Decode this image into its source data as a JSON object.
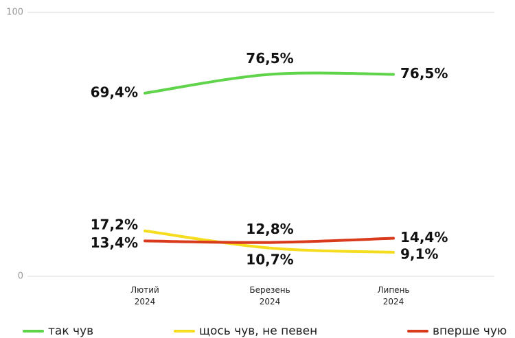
{
  "chart_data": {
    "type": "line",
    "categories": [
      "Лютий 2024",
      "Березень 2024",
      "Липень 2024"
    ],
    "series": [
      {
        "name": "так чув",
        "color": "#5fd34a",
        "values": [
          69.4,
          76.5,
          76.5
        ],
        "value_labels": [
          "69,4%",
          "76,5%",
          "76,5%"
        ]
      },
      {
        "name": "щось чув, не певен",
        "color": "#f5dc1e",
        "values": [
          17.2,
          10.7,
          9.1
        ],
        "value_labels": [
          "17,2%",
          "10,7%",
          "9,1%"
        ]
      },
      {
        "name": "вперше чую",
        "color": "#d93a1c",
        "values": [
          13.4,
          12.8,
          14.4
        ],
        "value_labels": [
          "13,4%",
          "12,8%",
          "14,4%"
        ]
      }
    ],
    "ylim": [
      0,
      100
    ],
    "yticks": [
      0,
      100
    ],
    "grid": true,
    "legend": "bottom"
  }
}
